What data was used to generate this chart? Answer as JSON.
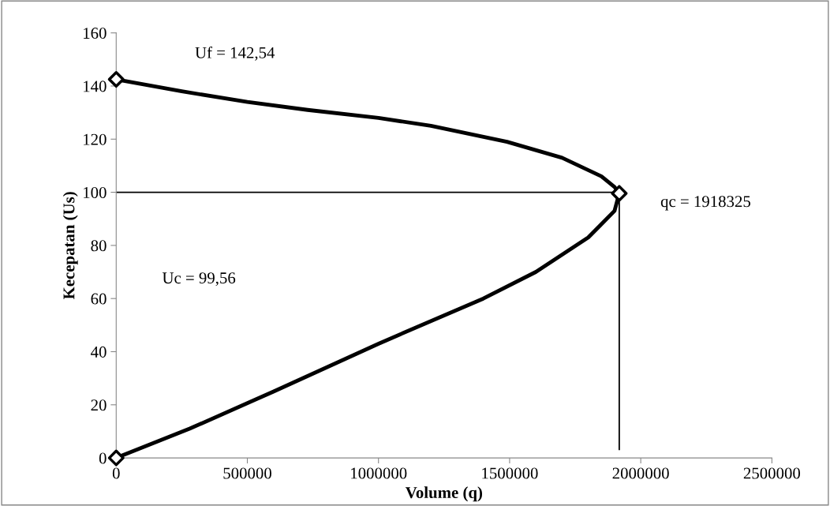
{
  "chart_data": {
    "type": "line",
    "xlabel": "Volume (q)",
    "ylabel": "Kecepatan (Us)",
    "xlim": [
      0,
      2500000
    ],
    "xticks": [
      0,
      500000,
      1000000,
      1500000,
      2000000,
      2500000
    ],
    "ylim": [
      0,
      160
    ],
    "yticks": [
      0,
      20,
      40,
      60,
      80,
      100,
      120,
      140,
      160
    ],
    "grid": false,
    "legend": false,
    "series": [
      {
        "color": "#000000",
        "marker": "none",
        "line_style": "solid",
        "x": [
          0,
          250000,
          500000,
          730000,
          1000000,
          1200000,
          1490000,
          1700000,
          1850000,
          1900000,
          1918000,
          1900000,
          1800000,
          1600000,
          1400000,
          1000000,
          600000,
          280000,
          0
        ],
        "values": [
          142.5,
          138,
          134,
          131,
          128,
          125,
          119,
          113,
          106,
          102,
          99.6,
          93,
          83,
          70,
          60,
          43,
          25,
          11,
          0
        ]
      },
      {
        "type": "scatter",
        "color": "#000000",
        "marker": "diamond",
        "x": [
          0,
          1918000,
          0
        ],
        "values": [
          142.5,
          99.6,
          0
        ]
      }
    ],
    "ref_lines": [
      {
        "axis": "y",
        "value": 100,
        "color": "#000000",
        "line_style": "solid"
      },
      {
        "axis": "x",
        "value": 1918000,
        "color": "#000000",
        "line_style": "solid"
      }
    ],
    "annotations": [
      "Uf = 142,54",
      "qc = 1918325",
      "Uc = 99,56"
    ]
  }
}
